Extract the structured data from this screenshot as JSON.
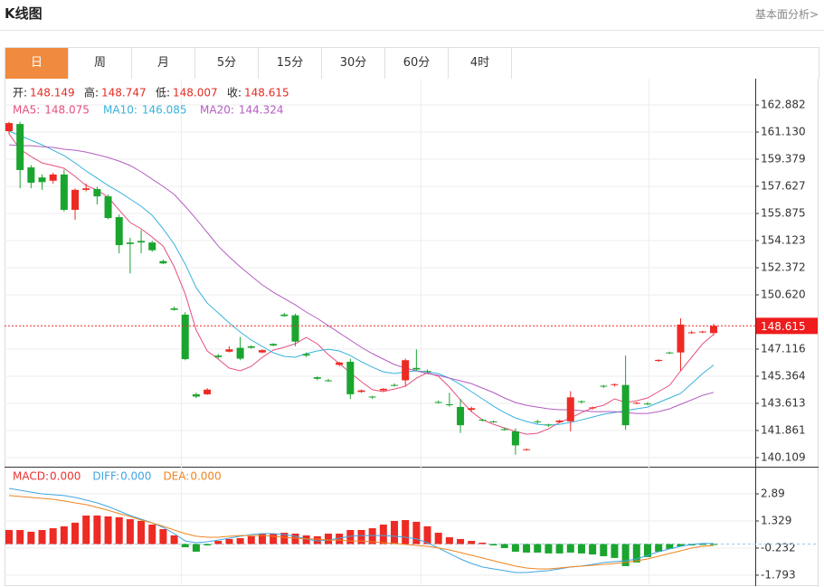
{
  "header": {
    "title": "K线图",
    "link": "基本面分析>"
  },
  "tabs": [
    "日",
    "周",
    "月",
    "5分",
    "15分",
    "30分",
    "60分",
    "4时"
  ],
  "active_tab": 0,
  "chart_data": [
    {
      "type": "candlestick",
      "ylim": [
        139.58,
        164.52
      ],
      "yticks": [
        162.882,
        "161.130",
        159.379,
        157.627,
        155.875,
        154.123,
        152.372,
        "150.620",
        147.116,
        145.364,
        143.613,
        141.861,
        140.109
      ],
      "grid": true,
      "up_color": "#ee2a24",
      "down_color": "#1aa52f",
      "info_labels": [
        "开:",
        "高:",
        "低:",
        "收:"
      ],
      "candles": {
        "open": [
          161.19,
          161.65,
          158.85,
          158.2,
          157.99,
          158.39,
          156.11,
          157.4,
          157.45,
          156.98,
          155.64,
          154.0,
          154.1,
          154.0,
          152.8,
          149.75,
          149.34,
          144.2,
          144.2,
          146.7,
          146.95,
          147.2,
          147.3,
          146.9,
          147.45,
          149.35,
          149.3,
          146.8,
          145.3,
          145.1,
          146.1,
          146.3,
          144.35,
          144.05,
          144.45,
          144.8,
          145.1,
          145.9,
          145.7,
          143.7,
          143.55,
          143.38,
          143.2,
          142.55,
          142.45,
          141.95,
          141.8,
          140.6,
          142.45,
          142.25,
          142.4,
          142.45,
          143.75,
          143.3,
          144.75,
          144.8,
          144.8,
          143.6,
          143.6,
          146.35,
          146.9,
          146.9,
          148.15,
          148.2,
          148.149
        ],
        "high": [
          161.8,
          161.8,
          159.0,
          158.4,
          158.5,
          158.7,
          157.5,
          157.8,
          157.6,
          157.1,
          155.8,
          154.3,
          154.8,
          154.1,
          152.9,
          149.85,
          149.5,
          144.3,
          144.6,
          146.8,
          147.3,
          147.9,
          147.35,
          147.1,
          147.5,
          149.45,
          149.4,
          146.9,
          145.35,
          145.2,
          146.3,
          146.5,
          144.5,
          144.1,
          144.6,
          144.9,
          146.5,
          147.1,
          145.8,
          143.8,
          144.3,
          143.9,
          143.4,
          142.6,
          142.5,
          142.05,
          142.0,
          140.7,
          142.55,
          142.3,
          142.55,
          144.4,
          143.8,
          143.4,
          144.8,
          144.9,
          146.7,
          143.7,
          143.7,
          146.45,
          146.95,
          149.1,
          148.3,
          148.3,
          148.747
        ],
        "low": [
          161.0,
          157.5,
          157.5,
          157.4,
          157.8,
          156.0,
          155.47,
          157.3,
          156.46,
          155.5,
          153.3,
          152.0,
          153.3,
          153.4,
          152.6,
          149.6,
          146.4,
          143.95,
          144.15,
          146.5,
          146.9,
          146.4,
          147.15,
          146.85,
          147.3,
          149.2,
          147.3,
          146.6,
          145.1,
          145.0,
          146.0,
          143.9,
          144.3,
          143.9,
          144.4,
          144.7,
          144.7,
          145.7,
          145.6,
          143.6,
          143.4,
          141.7,
          143.1,
          142.45,
          142.35,
          141.85,
          140.3,
          140.55,
          142.3,
          142.1,
          142.35,
          141.8,
          143.6,
          143.2,
          144.6,
          144.7,
          141.9,
          143.55,
          143.5,
          146.3,
          146.8,
          145.7,
          148.1,
          148.15,
          148.007
        ],
        "close": [
          161.71,
          158.68,
          157.86,
          157.9,
          158.39,
          156.11,
          157.4,
          157.5,
          156.98,
          155.58,
          153.83,
          153.9,
          154.0,
          153.5,
          152.65,
          149.65,
          146.47,
          144.05,
          144.5,
          146.6,
          147.1,
          146.5,
          147.2,
          147.05,
          147.35,
          149.25,
          147.6,
          146.7,
          145.2,
          145.05,
          146.25,
          144.2,
          144.45,
          144.0,
          144.55,
          144.75,
          146.4,
          145.8,
          145.65,
          143.65,
          143.5,
          142.2,
          143.3,
          142.5,
          142.4,
          141.9,
          140.9,
          140.65,
          142.4,
          142.2,
          142.5,
          144.0,
          143.7,
          143.35,
          144.7,
          144.85,
          142.2,
          143.65,
          143.55,
          146.42,
          146.85,
          148.7,
          148.2,
          148.25,
          148.615
        ]
      },
      "ma": [
        {
          "name": "MA5:",
          "color": "#e6507e",
          "values": [
            161.01,
            160.02,
            159.55,
            159.14,
            158.97,
            158.79,
            158.27,
            157.68,
            157.39,
            156.92,
            156.1,
            155.29,
            154.88,
            154.35,
            153.77,
            152.43,
            150.67,
            148.34,
            147.0,
            146.47,
            145.89,
            145.71,
            146.0,
            146.59,
            147.05,
            147.23,
            147.46,
            147.87,
            147.46,
            146.76,
            146.18,
            145.59,
            145.01,
            144.49,
            144.37,
            144.54,
            144.72,
            145.24,
            145.59,
            145.36,
            144.66,
            143.84,
            143.08,
            142.55,
            142.26,
            142.03,
            141.8,
            141.62,
            141.68,
            141.97,
            142.38,
            142.67,
            143.02,
            143.32,
            143.49,
            143.9,
            143.67,
            143.78,
            143.96,
            144.37,
            144.78,
            145.71,
            146.59,
            147.46,
            148.075
          ]
        },
        {
          "name": "MA10:",
          "color": "#36b3de",
          "values": [
            161.19,
            160.9,
            160.6,
            160.31,
            159.96,
            159.61,
            159.14,
            158.62,
            158.15,
            157.68,
            157.27,
            156.81,
            156.34,
            155.76,
            154.88,
            153.89,
            152.6,
            151.08,
            150.09,
            149.45,
            148.81,
            148.22,
            147.7,
            147.29,
            146.88,
            146.65,
            146.59,
            146.82,
            147.0,
            147.11,
            147.0,
            146.7,
            146.3,
            145.95,
            145.65,
            145.54,
            145.65,
            145.71,
            145.65,
            145.54,
            145.24,
            144.83,
            144.37,
            143.9,
            143.43,
            143.02,
            142.67,
            142.44,
            142.26,
            142.2,
            142.26,
            142.38,
            142.55,
            142.73,
            142.91,
            143.02,
            143.14,
            143.26,
            143.37,
            143.67,
            143.96,
            144.25,
            144.89,
            145.54,
            146.085
          ]
        },
        {
          "name": "MA20:",
          "color": "#b45dc2",
          "values": [
            160.31,
            160.25,
            160.25,
            160.19,
            160.14,
            160.02,
            159.96,
            159.84,
            159.67,
            159.49,
            159.26,
            158.97,
            158.56,
            158.09,
            157.62,
            157.1,
            156.34,
            155.52,
            154.65,
            153.77,
            153.07,
            152.43,
            151.84,
            151.26,
            150.79,
            150.38,
            149.97,
            149.51,
            149.1,
            148.63,
            148.16,
            147.7,
            147.23,
            146.82,
            146.47,
            146.12,
            145.89,
            145.71,
            145.54,
            145.42,
            145.24,
            145.07,
            144.89,
            144.6,
            144.31,
            143.96,
            143.67,
            143.49,
            143.37,
            143.26,
            143.2,
            143.2,
            143.14,
            143.08,
            143.08,
            143.08,
            143.02,
            142.96,
            142.96,
            143.08,
            143.26,
            143.55,
            143.84,
            144.13,
            144.324
          ]
        }
      ]
    },
    {
      "type": "macd",
      "ylim": [
        -2.42,
        4.4
      ],
      "yticks": [
        2.89,
        1.329,
        -0.232,
        -1.793
      ],
      "grid": true,
      "up_color": "#ee2a24",
      "down_color": "#1aa52f",
      "legend_values": [
        "0.000",
        "0.000",
        "0.000"
      ],
      "series": [
        {
          "name": "MACD:",
          "kind": "bar",
          "color": "#e8322f",
          "values": [
            0.81,
            0.81,
            0.71,
            0.81,
            0.91,
            1.02,
            1.23,
            1.64,
            1.64,
            1.59,
            1.54,
            1.43,
            1.33,
            1.12,
            0.86,
            0.5,
            -0.18,
            -0.44,
            -0.08,
            0.18,
            0.29,
            0.34,
            0.45,
            0.6,
            0.6,
            0.65,
            0.6,
            0.5,
            0.45,
            0.6,
            0.6,
            0.81,
            0.81,
            0.91,
            1.12,
            1.33,
            1.38,
            1.28,
            1.02,
            0.65,
            0.39,
            0.29,
            0.18,
            0.08,
            -0.08,
            -0.23,
            -0.44,
            -0.49,
            -0.49,
            -0.54,
            -0.54,
            -0.49,
            -0.54,
            -0.6,
            -0.7,
            -0.8,
            -1.27,
            -1.06,
            -0.75,
            -0.44,
            -0.28,
            -0.13,
            -0.08,
            -0.02,
            -0.02
          ]
        },
        {
          "name": "DIFF:",
          "kind": "line",
          "color": "#3fa6e2",
          "values": [
            3.2,
            3.1,
            2.99,
            2.89,
            2.84,
            2.79,
            2.68,
            2.53,
            2.37,
            2.16,
            1.9,
            1.64,
            1.43,
            1.22,
            0.96,
            0.6,
            0.18,
            0.08,
            0.13,
            0.23,
            0.34,
            0.45,
            0.55,
            0.6,
            0.6,
            0.55,
            0.45,
            0.29,
            0.18,
            0.23,
            0.34,
            0.45,
            0.49,
            0.49,
            0.49,
            0.45,
            0.39,
            0.29,
            0.08,
            -0.23,
            -0.54,
            -0.86,
            -1.12,
            -1.32,
            -1.43,
            -1.53,
            -1.64,
            -1.64,
            -1.58,
            -1.53,
            -1.43,
            -1.32,
            -1.27,
            -1.17,
            -1.06,
            -1.01,
            -0.96,
            -0.86,
            -0.65,
            -0.44,
            -0.28,
            -0.13,
            -0.02,
            0.03,
            0.03
          ]
        },
        {
          "name": "DEA:",
          "kind": "line",
          "color": "#ef8520",
          "values": [
            2.79,
            2.74,
            2.68,
            2.63,
            2.58,
            2.48,
            2.37,
            2.27,
            2.11,
            1.95,
            1.75,
            1.59,
            1.38,
            1.22,
            1.02,
            0.81,
            0.6,
            0.45,
            0.39,
            0.39,
            0.45,
            0.49,
            0.49,
            0.49,
            0.45,
            0.39,
            0.34,
            0.29,
            0.29,
            0.23,
            0.23,
            0.18,
            0.18,
            0.13,
            0.08,
            0.03,
            -0.02,
            -0.08,
            -0.13,
            -0.23,
            -0.34,
            -0.49,
            -0.65,
            -0.8,
            -0.96,
            -1.12,
            -1.27,
            -1.38,
            -1.43,
            -1.43,
            -1.38,
            -1.32,
            -1.27,
            -1.22,
            -1.17,
            -1.12,
            -1.06,
            -0.96,
            -0.86,
            -0.7,
            -0.54,
            -0.39,
            -0.23,
            -0.13,
            -0.08
          ]
        }
      ]
    }
  ]
}
